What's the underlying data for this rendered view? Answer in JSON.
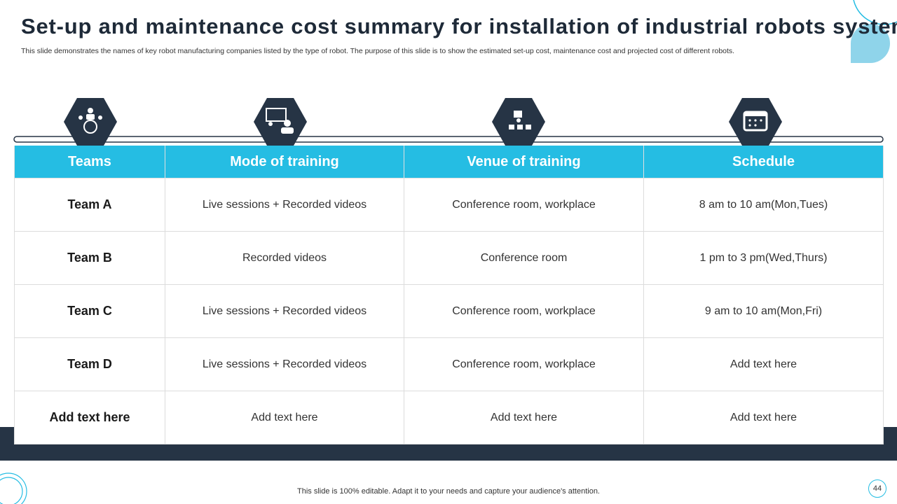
{
  "header": {
    "title": "Set-up and maintenance cost summary for installation of industrial robots system",
    "subtitle": "This slide demonstrates the names of key robot manufacturing companies listed by the type of robot. The purpose of this slide is to show the estimated set-up cost, maintenance cost and projected cost of different robots."
  },
  "table": {
    "columns": [
      "Teams",
      "Mode of training",
      "Venue of training",
      "Schedule"
    ],
    "rows": [
      [
        "Team A",
        "Live sessions + Recorded videos",
        "Conference room, workplace",
        "8 am to 10 am(Mon,Tues)"
      ],
      [
        "Team B",
        "Recorded videos",
        "Conference room",
        "1 pm to 3 pm(Wed,Thurs)"
      ],
      [
        "Team C",
        "Live sessions + Recorded videos",
        "Conference room, workplace",
        "9 am to 10 am(Mon,Fri)"
      ],
      [
        "Team D",
        "Live sessions + Recorded videos",
        "Conference room, workplace",
        "Add text here"
      ],
      [
        "Add text here",
        "Add text here",
        "Add text here",
        "Add text here"
      ]
    ]
  },
  "footer": {
    "note": "This slide is 100% editable. Adapt it to your needs and capture your audience's attention.",
    "page_number": "44"
  }
}
